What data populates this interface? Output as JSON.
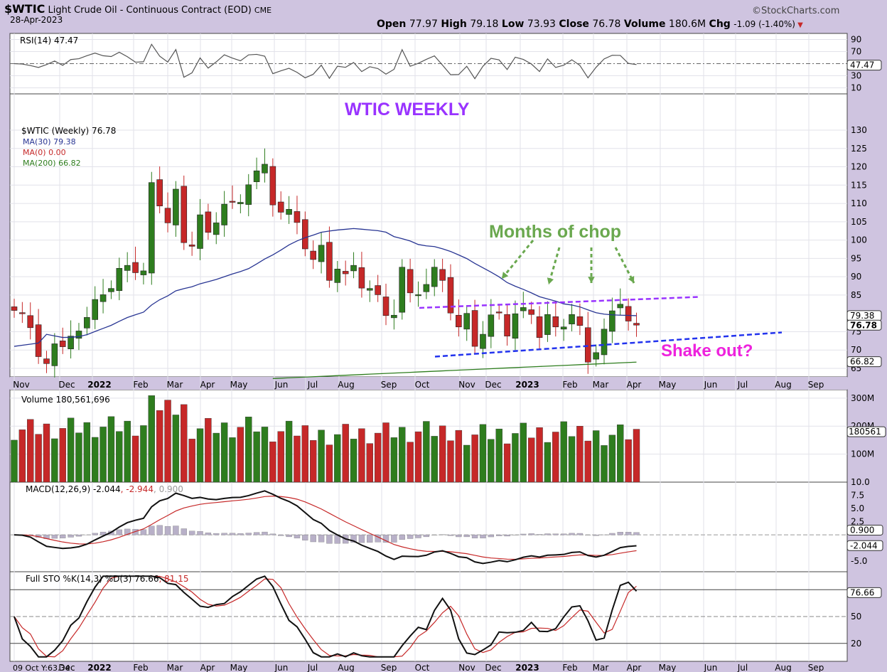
{
  "header": {
    "symbol": "$WTIC",
    "name": "Light Crude Oil - Continuous Contract (EOD)",
    "exchange": "CME",
    "date": "28-Apr-2023",
    "brand": "©StockCharts.com",
    "open_label": "Open",
    "open": "77.97",
    "high_label": "High",
    "high": "79.18",
    "low_label": "Low",
    "low": "73.93",
    "close_label": "Close",
    "close": "76.78",
    "volume_label": "Volume",
    "volume": "180.6M",
    "chg_label": "Chg",
    "chg": "-1.09 (-1.40%)"
  },
  "rsi_panel": {
    "label": "RSI(14) 47.47",
    "ticks": [
      "90",
      "70",
      "30",
      "10"
    ],
    "value_tag": "47.47"
  },
  "price_panel": {
    "legend_main": "$WTIC (Weekly) 76.78",
    "legend_ma30": "MA(30) 79.38",
    "legend_ma0": "MA(0) 0.00",
    "legend_ma200": "MA(200) 66.82",
    "ticks": [
      "130",
      "125",
      "120",
      "115",
      "110",
      "105",
      "100",
      "95",
      "90",
      "85",
      "75",
      "70",
      "65"
    ],
    "tags": {
      "ma30": "79.38",
      "close": "76.78",
      "ma200": "66.82"
    },
    "title_annotation": "WTIC WEEKLY",
    "chop_annotation": "Months of chop",
    "shake_annotation": "Shake out?"
  },
  "volume_panel": {
    "label": "Volume 180,561,696",
    "ticks": [
      "300M",
      "200M",
      "100M"
    ],
    "value_tag": "180561"
  },
  "macd_panel": {
    "label_a": "MACD(12,26,9) -2.044",
    "label_b": ", -2.944",
    "label_c": ", 0.900",
    "ticks": [
      "10.0",
      "7.5",
      "5.0",
      "2.5",
      "-5.0"
    ],
    "tags": {
      "hist": "0.900",
      "macd": "-2.044"
    }
  },
  "sto_panel": {
    "label_a": "Full STO %K(14,3) %D(3) 76.66",
    "label_b": ", 81.15",
    "ticks": [
      "50",
      "20"
    ],
    "value_tag": "76.66"
  },
  "x_axis_labels": [
    "Nov",
    "Dec",
    "2022",
    "Feb",
    "Mar",
    "Apr",
    "May",
    "Jun",
    "Jul",
    "Aug",
    "Sep",
    "Oct",
    "Nov",
    "Dec",
    "2023",
    "Feb",
    "Mar",
    "Apr",
    "May",
    "Jun",
    "Jul",
    "Aug",
    "Sep"
  ],
  "bottom_axis_first": "09 Oct Y:63.34",
  "colors": {
    "up": "#2e7d1e",
    "down": "#c62828",
    "ma30": "#283593",
    "ma200": "#2e7d1e",
    "rsi": "#555555",
    "annotation_purple": "#9933ff",
    "annotation_green": "#6aa84f",
    "annotation_pink": "#ee22dd",
    "trend_purple": "#9933ff",
    "trend_blue": "#2233ee"
  },
  "chart_data": {
    "type": "line",
    "title": "$WTIC Light Crude Oil - Continuous Contract (EOD) Weekly",
    "weeks": [
      "2021-11-01",
      "2021-11-08",
      "2021-11-15",
      "2021-11-22",
      "2021-11-29",
      "2021-12-06",
      "2021-12-13",
      "2021-12-20",
      "2021-12-27",
      "2022-01-03",
      "2022-01-10",
      "2022-01-17",
      "2022-01-24",
      "2022-01-31",
      "2022-02-07",
      "2022-02-14",
      "2022-02-21",
      "2022-02-28",
      "2022-03-07",
      "2022-03-14",
      "2022-03-21",
      "2022-03-28",
      "2022-04-04",
      "2022-04-11",
      "2022-04-18",
      "2022-04-25",
      "2022-05-02",
      "2022-05-09",
      "2022-05-16",
      "2022-05-23",
      "2022-05-30",
      "2022-06-06",
      "2022-06-13",
      "2022-06-20",
      "2022-06-27",
      "2022-07-04",
      "2022-07-11",
      "2022-07-18",
      "2022-07-25",
      "2022-08-01",
      "2022-08-08",
      "2022-08-15",
      "2022-08-22",
      "2022-08-29",
      "2022-09-05",
      "2022-09-12",
      "2022-09-19",
      "2022-09-26",
      "2022-10-03",
      "2022-10-10",
      "2022-10-17",
      "2022-10-24",
      "2022-10-31",
      "2022-11-07",
      "2022-11-14",
      "2022-11-21",
      "2022-11-28",
      "2022-12-05",
      "2022-12-12",
      "2022-12-19",
      "2022-12-26",
      "2023-01-02",
      "2023-01-09",
      "2023-01-16",
      "2023-01-23",
      "2023-01-30",
      "2023-02-06",
      "2023-02-13",
      "2023-02-20",
      "2023-02-27",
      "2023-03-06",
      "2023-03-13",
      "2023-03-20",
      "2023-03-27",
      "2023-04-03",
      "2023-04-10",
      "2023-04-17",
      "2023-04-24"
    ],
    "close": [
      80.8,
      80.0,
      76.1,
      68.2,
      66.3,
      71.7,
      70.9,
      73.8,
      75.2,
      78.9,
      83.8,
      85.1,
      86.8,
      92.3,
      93.1,
      91.1,
      91.6,
      115.7,
      109.3,
      104.7,
      113.9,
      99.3,
      98.3,
      106.9,
      102.1,
      104.7,
      109.8,
      110.5,
      110.3,
      115.1,
      118.9,
      120.7,
      109.6,
      107.6,
      108.4,
      104.8,
      97.6,
      94.7,
      98.6,
      89.0,
      92.1,
      90.8,
      93.1,
      86.9,
      86.8,
      85.1,
      79.4,
      79.5,
      92.6,
      85.6,
      85.1,
      87.9,
      92.6,
      89.0,
      80.1,
      76.3,
      80.0,
      71.0,
      74.3,
      79.6,
      80.3,
      73.8,
      79.9,
      81.6,
      79.7,
      73.4,
      79.7,
      76.3,
      76.3,
      79.7,
      76.7,
      66.7,
      69.3,
      75.7,
      80.7,
      82.5,
      77.9,
      76.8
    ],
    "ma30_last": 79.38,
    "ma200_last": 66.82,
    "rsi_last": 47.47,
    "volume_last": 180561696,
    "macd": {
      "macd": -2.044,
      "signal": -2.944,
      "histogram": 0.9
    },
    "stochastic": {
      "k": 76.66,
      "d": 81.15
    },
    "price_ylim": [
      65,
      130
    ],
    "rsi_ylim": [
      0,
      100
    ],
    "macd_ylim": [
      -7,
      10
    ],
    "sto_ylim": [
      0,
      100
    ]
  }
}
